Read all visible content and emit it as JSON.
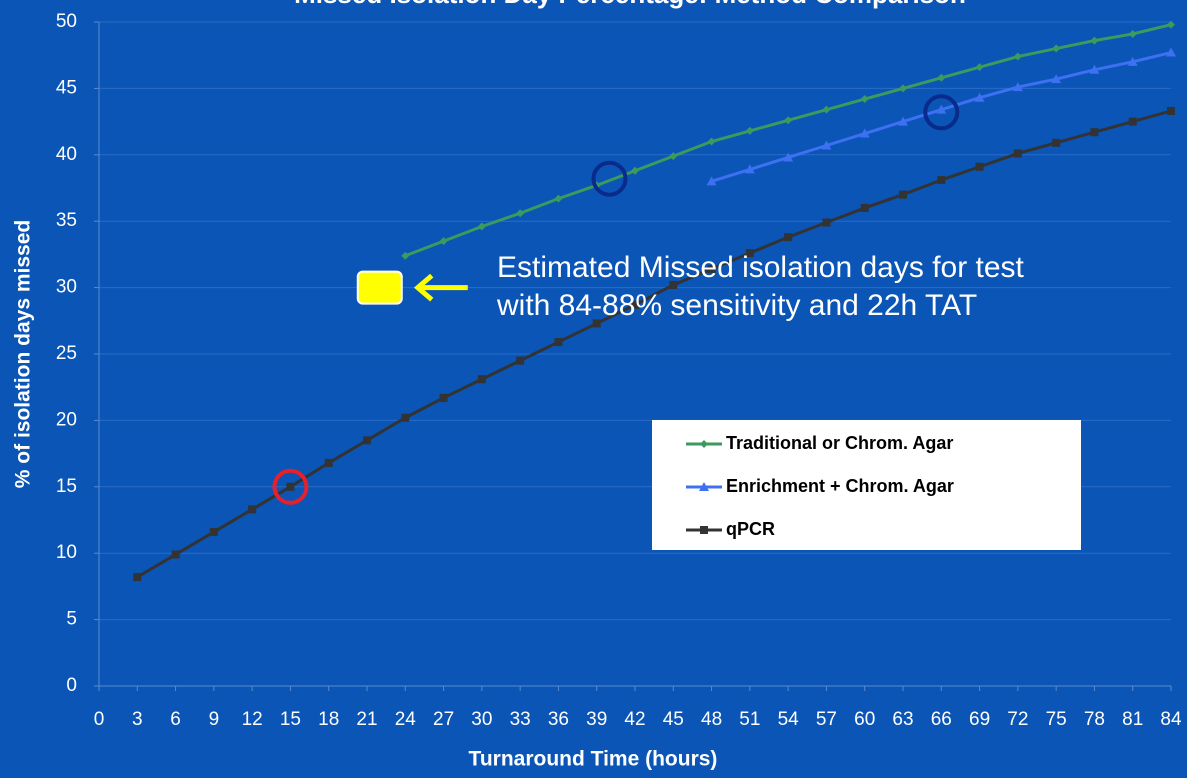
{
  "chart_data": {
    "type": "line",
    "title": "Missed Isolation Day Percentage: Method Comparison",
    "x_label": "Turnaround Time (hours)",
    "y_label": "% of isolation days missed",
    "x": [
      3,
      6,
      9,
      12,
      15,
      18,
      21,
      24,
      27,
      30,
      33,
      36,
      39,
      42,
      45,
      48,
      51,
      54,
      57,
      60,
      63,
      66,
      69,
      72,
      75,
      78,
      81,
      84
    ],
    "series": [
      {
        "name": "Traditional or Chrom. Agar",
        "color": "#3c9a5f",
        "marker": "diamond",
        "values": [
          null,
          null,
          null,
          null,
          null,
          null,
          null,
          32.4,
          33.5,
          34.6,
          35.6,
          36.7,
          37.7,
          38.8,
          39.9,
          41.0,
          41.8,
          42.6,
          43.4,
          44.2,
          45.0,
          45.8,
          46.6,
          47.4,
          48.0,
          48.6,
          49.1,
          49.8
        ]
      },
      {
        "name": "Enrichment + Chrom. Agar",
        "color": "#3d70f2",
        "marker": "triangle",
        "values": [
          null,
          null,
          null,
          null,
          null,
          null,
          null,
          null,
          null,
          null,
          null,
          null,
          null,
          null,
          null,
          38.0,
          38.9,
          39.8,
          40.7,
          41.6,
          42.5,
          43.4,
          44.3,
          45.1,
          45.7,
          46.4,
          47.0,
          47.7
        ]
      },
      {
        "name": "qPCR",
        "color": "#333333",
        "marker": "square",
        "values": [
          8.2,
          9.9,
          11.6,
          13.3,
          15.0,
          16.8,
          18.5,
          20.2,
          21.7,
          23.1,
          24.5,
          25.9,
          27.3,
          28.7,
          30.2,
          31.4,
          32.6,
          33.8,
          34.9,
          36.0,
          37.0,
          38.1,
          39.1,
          40.1,
          40.9,
          41.7,
          42.5,
          43.3
        ]
      }
    ],
    "xlim": [
      0,
      84
    ],
    "xticks": [
      0,
      3,
      6,
      9,
      12,
      15,
      18,
      21,
      24,
      27,
      30,
      33,
      36,
      39,
      42,
      45,
      48,
      51,
      54,
      57,
      60,
      63,
      66,
      69,
      72,
      75,
      78,
      81,
      84
    ],
    "ylim": [
      0,
      50
    ],
    "yticks": [
      0,
      5,
      10,
      15,
      20,
      25,
      30,
      35,
      40,
      45,
      50
    ],
    "grid": true,
    "highlights": [
      {
        "x": 15,
        "y": 15,
        "color": "#e8202a"
      },
      {
        "x": 40,
        "y": 38.2,
        "color": "#0a2a8c"
      },
      {
        "x": 66,
        "y": 43.2,
        "color": "#0a2a8c"
      }
    ],
    "estimate": {
      "x": 22,
      "y": 30,
      "color": "#ffff00"
    },
    "annotation": [
      "Estimated Missed isolation days for test",
      "with 84-88% sensitivity and 22h TAT"
    ]
  }
}
